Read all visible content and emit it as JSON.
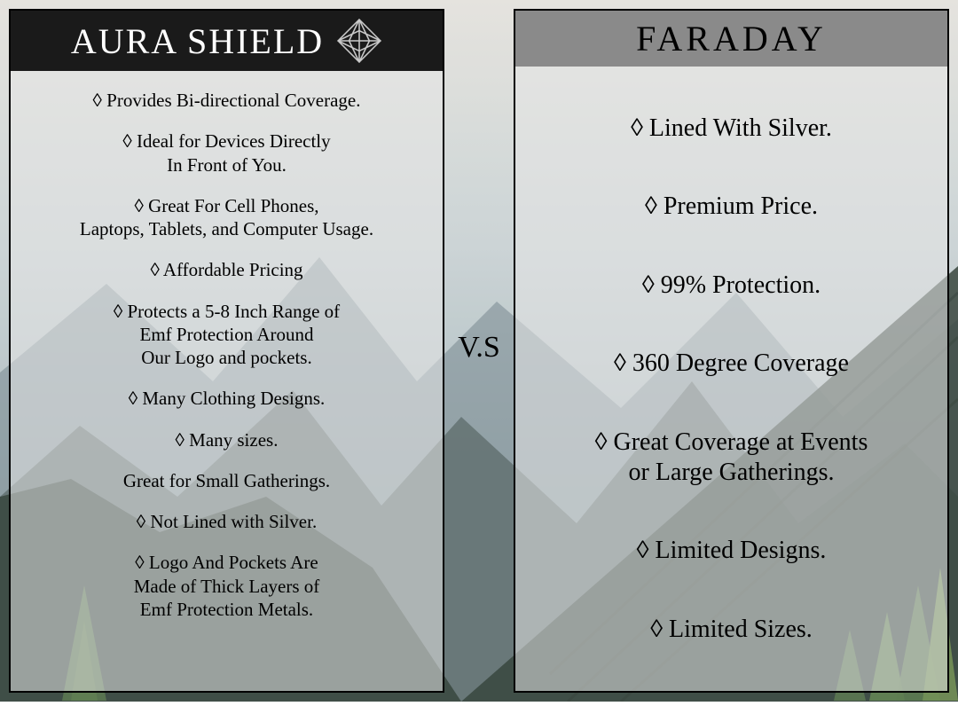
{
  "background": {
    "sky_top": "#e4e2dc",
    "sky_mid": "#c9d2d4",
    "haze": "#a9b8bc",
    "mountain_far": "#6f8188",
    "mountain_near": "#4e5e5d",
    "forest_dark": "#2d3b33",
    "forest_bright": "#557648",
    "pine_accent": "#6a8a4d"
  },
  "vs_label": "V.S",
  "left": {
    "title": "AURA SHIELD",
    "header_bg": "#1a1a1a",
    "header_color": "#ffffff",
    "icon_name": "diamond-star-icon",
    "icon_color": "#c9c9c9",
    "bullet": "◊",
    "items": [
      "◊ Provides Bi-directional Coverage.",
      "◊ Ideal for Devices Directly\nIn Front of You.",
      "◊ Great For Cell Phones,\nLaptops, Tablets, and Computer Usage.",
      "◊ Affordable Pricing",
      "◊ Protects a 5-8 Inch Range of\nEmf Protection Around\nOur Logo and pockets.",
      "◊ Many Clothing Designs.",
      "◊ Many sizes.",
      "Great for Small Gatherings.",
      "◊ Not Lined with Silver.",
      "◊ Logo And Pockets Are\nMade of Thick Layers of\nEmf Protection Metals."
    ]
  },
  "right": {
    "title": "FARADAY",
    "header_bg": "#8a8a8a",
    "header_color": "#000000",
    "bullet": "◊",
    "items": [
      "◊ Lined With Silver.",
      "◊ Premium Price.",
      "◊ 99% Protection.",
      "◊ 360 Degree Coverage",
      "◊ Great Coverage at Events\nor Large Gatherings.",
      "◊ Limited Designs.",
      "◊ Limited Sizes."
    ]
  }
}
